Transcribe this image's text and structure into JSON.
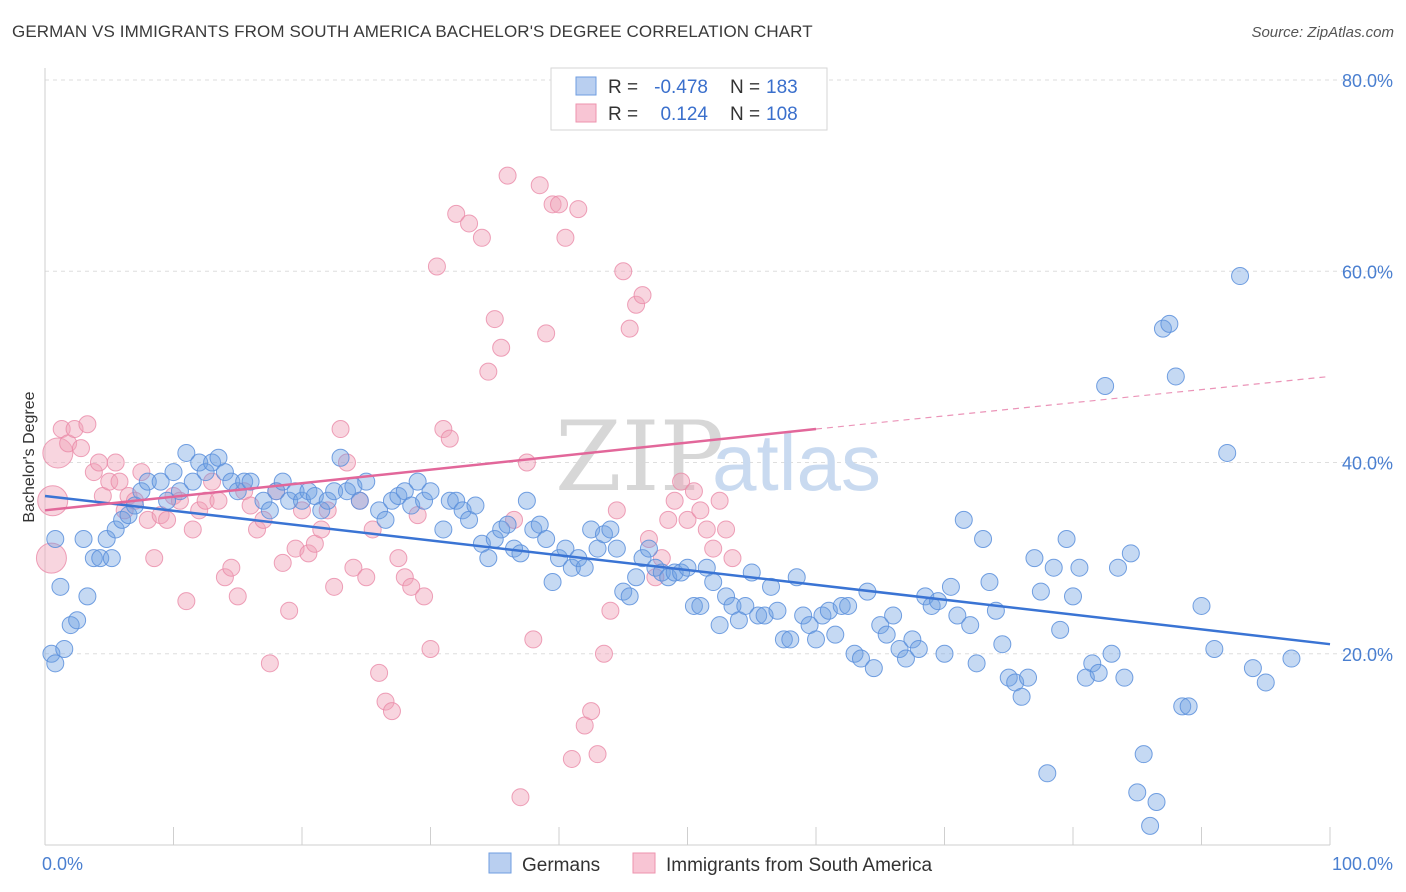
{
  "title": "GERMAN VS IMMIGRANTS FROM SOUTH AMERICA BACHELOR'S DEGREE CORRELATION CHART",
  "source": "Source: ZipAtlas.com",
  "watermark": {
    "zip": "ZIP",
    "atlas": "atlas"
  },
  "colors": {
    "blue": "#6fa0e0",
    "blue_line": "#3a74d4",
    "pink": "#f0a2b9",
    "pink_line": "#e2679a"
  },
  "legend": {
    "r_label": "R =",
    "n_label": "N =",
    "rows": [
      {
        "r": "-0.478",
        "n": "183"
      },
      {
        "r": "0.124",
        "n": "108"
      }
    ]
  },
  "chart_data": {
    "type": "scatter",
    "title": "GERMAN VS IMMIGRANTS FROM SOUTH AMERICA BACHELOR'S DEGREE CORRELATION CHART",
    "xlabel": "",
    "ylabel": "Bachelor's Degree",
    "xlim": [
      0,
      100
    ],
    "ylim": [
      0,
      80
    ],
    "x_tick_labels": [
      "0.0%",
      "100.0%"
    ],
    "y_tick_labels": [
      "20.0%",
      "40.0%",
      "60.0%",
      "80.0%"
    ],
    "y_ticks": [
      20,
      40,
      60,
      80
    ],
    "grid": "horizontal dashed",
    "legend_position": "top-center",
    "series": [
      {
        "name": "Germans",
        "r": -0.478,
        "n": 183,
        "trend": {
          "x": [
            0,
            100
          ],
          "y": [
            36.5,
            21.0
          ]
        },
        "points": [
          [
            0.5,
            20
          ],
          [
            0.8,
            19
          ],
          [
            1.5,
            20.5
          ],
          [
            2,
            23
          ],
          [
            2.5,
            23.5
          ],
          [
            3,
            32
          ],
          [
            3.3,
            26
          ],
          [
            3.8,
            30
          ],
          [
            4.3,
            30
          ],
          [
            4.8,
            32
          ],
          [
            5.2,
            30
          ],
          [
            5.5,
            33
          ],
          [
            6,
            34
          ],
          [
            6.5,
            34.5
          ],
          [
            7,
            35.5
          ],
          [
            7.5,
            37
          ],
          [
            8,
            38
          ],
          [
            9,
            38
          ],
          [
            9.5,
            36
          ],
          [
            10,
            39
          ],
          [
            10.5,
            37
          ],
          [
            11,
            41
          ],
          [
            11.5,
            38
          ],
          [
            12,
            40
          ],
          [
            12.5,
            39
          ],
          [
            13,
            40
          ],
          [
            13.5,
            40.5
          ],
          [
            14,
            39
          ],
          [
            14.5,
            38
          ],
          [
            15,
            37
          ],
          [
            15.5,
            38
          ],
          [
            16,
            38
          ],
          [
            17,
            36
          ],
          [
            17.5,
            35
          ],
          [
            18,
            37
          ],
          [
            18.5,
            38
          ],
          [
            19,
            36
          ],
          [
            19.5,
            37
          ],
          [
            20,
            36
          ],
          [
            20.5,
            37
          ],
          [
            21,
            36.5
          ],
          [
            21.5,
            35
          ],
          [
            22,
            36
          ],
          [
            22.5,
            37
          ],
          [
            23,
            40.5
          ],
          [
            23.5,
            37
          ],
          [
            24,
            37.5
          ],
          [
            24.5,
            36
          ],
          [
            25,
            38
          ],
          [
            26,
            35
          ],
          [
            26.5,
            34
          ],
          [
            27,
            36
          ],
          [
            27.5,
            36.5
          ],
          [
            28,
            37
          ],
          [
            28.5,
            35.5
          ],
          [
            29,
            38
          ],
          [
            29.5,
            36
          ],
          [
            30,
            37
          ],
          [
            31,
            33
          ],
          [
            31.5,
            36
          ],
          [
            32,
            36
          ],
          [
            32.5,
            35
          ],
          [
            33,
            34
          ],
          [
            33.5,
            35.5
          ],
          [
            34,
            31.5
          ],
          [
            34.5,
            30
          ],
          [
            35,
            32
          ],
          [
            35.5,
            33
          ],
          [
            36,
            33.5
          ],
          [
            36.5,
            31
          ],
          [
            37,
            30.5
          ],
          [
            37.5,
            36
          ],
          [
            38,
            33
          ],
          [
            38.5,
            33.5
          ],
          [
            39,
            32
          ],
          [
            39.5,
            27.5
          ],
          [
            40,
            30
          ],
          [
            40.5,
            31
          ],
          [
            41,
            29
          ],
          [
            41.5,
            30
          ],
          [
            42,
            29
          ],
          [
            42.5,
            33
          ],
          [
            43,
            31
          ],
          [
            43.5,
            32.5
          ],
          [
            44,
            33
          ],
          [
            44.5,
            31
          ],
          [
            45,
            26.5
          ],
          [
            45.5,
            26
          ],
          [
            46,
            28
          ],
          [
            46.5,
            30
          ],
          [
            47,
            31
          ],
          [
            47.5,
            29
          ],
          [
            48,
            28.5
          ],
          [
            48.5,
            28
          ],
          [
            49,
            28.5
          ],
          [
            49.5,
            28.5
          ],
          [
            50,
            29
          ],
          [
            50.5,
            25
          ],
          [
            51,
            25
          ],
          [
            51.5,
            29
          ],
          [
            52,
            27.5
          ],
          [
            52.5,
            23
          ],
          [
            53,
            26
          ],
          [
            53.5,
            25
          ],
          [
            54,
            23.5
          ],
          [
            54.5,
            25
          ],
          [
            55,
            28.5
          ],
          [
            55.5,
            24
          ],
          [
            56,
            24
          ],
          [
            56.5,
            27
          ],
          [
            57,
            24.5
          ],
          [
            57.5,
            21.5
          ],
          [
            58,
            21.5
          ],
          [
            58.5,
            28
          ],
          [
            59,
            24
          ],
          [
            59.5,
            23
          ],
          [
            60,
            21.5
          ],
          [
            60.5,
            24
          ],
          [
            61,
            24.5
          ],
          [
            61.5,
            22
          ],
          [
            62,
            25
          ],
          [
            62.5,
            25
          ],
          [
            63,
            20
          ],
          [
            63.5,
            19.5
          ],
          [
            64,
            26.5
          ],
          [
            64.5,
            18.5
          ],
          [
            65,
            23
          ],
          [
            65.5,
            22
          ],
          [
            66,
            24
          ],
          [
            66.5,
            20.5
          ],
          [
            67,
            19.5
          ],
          [
            67.5,
            21.5
          ],
          [
            68,
            20.5
          ],
          [
            68.5,
            26
          ],
          [
            69,
            25
          ],
          [
            69.5,
            25.5
          ],
          [
            70,
            20
          ],
          [
            70.5,
            27
          ],
          [
            71,
            24
          ],
          [
            71.5,
            34
          ],
          [
            72,
            23
          ],
          [
            72.5,
            19
          ],
          [
            73,
            32
          ],
          [
            73.5,
            27.5
          ],
          [
            74,
            24.5
          ],
          [
            74.5,
            21
          ],
          [
            75,
            17.5
          ],
          [
            75.5,
            17
          ],
          [
            76,
            15.5
          ],
          [
            76.5,
            17.5
          ],
          [
            77,
            30
          ],
          [
            77.5,
            26.5
          ],
          [
            78,
            7.5
          ],
          [
            78.5,
            29
          ],
          [
            79,
            22.5
          ],
          [
            79.5,
            32
          ],
          [
            80,
            26
          ],
          [
            80.5,
            29
          ],
          [
            81,
            17.5
          ],
          [
            81.5,
            19
          ],
          [
            82,
            18
          ],
          [
            82.5,
            48
          ],
          [
            83,
            20
          ],
          [
            83.5,
            29
          ],
          [
            84,
            17.5
          ],
          [
            84.5,
            30.5
          ],
          [
            85,
            5.5
          ],
          [
            85.5,
            9.5
          ],
          [
            86,
            2
          ],
          [
            86.5,
            4.5
          ],
          [
            87,
            54
          ],
          [
            87.5,
            54.5
          ],
          [
            88,
            49
          ],
          [
            88.5,
            14.5
          ],
          [
            89,
            14.5
          ],
          [
            90,
            25
          ],
          [
            91,
            20.5
          ],
          [
            92,
            41
          ],
          [
            93,
            59.5
          ],
          [
            94,
            18.5
          ],
          [
            95,
            17
          ],
          [
            97,
            19.5
          ],
          [
            0.8,
            32
          ],
          [
            1.2,
            27
          ]
        ]
      },
      {
        "name": "Immigrants from South America",
        "r": 0.124,
        "n": 108,
        "trend": {
          "x": [
            0,
            60
          ],
          "y": [
            35.0,
            43.5
          ]
        },
        "trend_ext": {
          "x": [
            60,
            100
          ],
          "y": [
            43.5,
            49.0
          ]
        },
        "points": [
          [
            0.5,
            30
          ],
          [
            0.6,
            36
          ],
          [
            1,
            41
          ],
          [
            1.3,
            43.5
          ],
          [
            1.8,
            42
          ],
          [
            2.3,
            43.5
          ],
          [
            2.8,
            41.5
          ],
          [
            3.3,
            44
          ],
          [
            3.8,
            39
          ],
          [
            4.2,
            40
          ],
          [
            4.5,
            36.5
          ],
          [
            5,
            38
          ],
          [
            5.5,
            40
          ],
          [
            5.8,
            38
          ],
          [
            6.2,
            35
          ],
          [
            6.5,
            36.5
          ],
          [
            7,
            36
          ],
          [
            7.5,
            39
          ],
          [
            8,
            34
          ],
          [
            8.5,
            30
          ],
          [
            9,
            34.5
          ],
          [
            9.5,
            34
          ],
          [
            10,
            36.5
          ],
          [
            10.5,
            36
          ],
          [
            11,
            25.5
          ],
          [
            11.5,
            33
          ],
          [
            12,
            35
          ],
          [
            12.5,
            36
          ],
          [
            13,
            38
          ],
          [
            13.5,
            36
          ],
          [
            14,
            28
          ],
          [
            14.5,
            29
          ],
          [
            15,
            26
          ],
          [
            15.5,
            37
          ],
          [
            16,
            35.5
          ],
          [
            16.5,
            33
          ],
          [
            17,
            34
          ],
          [
            17.5,
            19
          ],
          [
            18,
            37
          ],
          [
            18.5,
            29.5
          ],
          [
            19,
            24.5
          ],
          [
            19.5,
            31
          ],
          [
            20,
            35
          ],
          [
            20.5,
            30.5
          ],
          [
            21,
            31.5
          ],
          [
            21.5,
            33
          ],
          [
            22,
            35
          ],
          [
            22.5,
            27
          ],
          [
            23,
            43.5
          ],
          [
            23.5,
            40
          ],
          [
            24,
            29
          ],
          [
            24.5,
            36
          ],
          [
            25,
            28
          ],
          [
            25.5,
            33
          ],
          [
            26,
            18
          ],
          [
            26.5,
            15
          ],
          [
            27,
            14
          ],
          [
            27.5,
            30
          ],
          [
            28,
            28
          ],
          [
            28.5,
            27
          ],
          [
            29,
            34.5
          ],
          [
            29.5,
            26
          ],
          [
            30,
            20.5
          ],
          [
            30.5,
            60.5
          ],
          [
            31,
            43.5
          ],
          [
            31.5,
            42.5
          ],
          [
            32,
            66
          ],
          [
            33,
            65
          ],
          [
            34,
            63.5
          ],
          [
            34.5,
            49.5
          ],
          [
            35,
            55
          ],
          [
            35.5,
            52
          ],
          [
            36,
            70
          ],
          [
            36.5,
            34
          ],
          [
            37,
            5
          ],
          [
            37.5,
            40
          ],
          [
            38,
            21.5
          ],
          [
            38.5,
            69
          ],
          [
            39,
            53.5
          ],
          [
            39.5,
            67
          ],
          [
            40,
            67
          ],
          [
            40.5,
            63.5
          ],
          [
            41,
            9
          ],
          [
            41.5,
            66.5
          ],
          [
            42,
            12.5
          ],
          [
            42.5,
            14
          ],
          [
            43,
            9.5
          ],
          [
            43.5,
            20
          ],
          [
            44,
            24.5
          ],
          [
            44.5,
            35
          ],
          [
            45,
            60
          ],
          [
            45.5,
            54
          ],
          [
            46,
            56.5
          ],
          [
            46.5,
            57.5
          ],
          [
            47,
            32
          ],
          [
            47.5,
            28
          ],
          [
            48,
            30
          ],
          [
            48.5,
            34
          ],
          [
            49,
            36
          ],
          [
            49.5,
            38
          ],
          [
            50,
            34
          ],
          [
            50.5,
            37
          ],
          [
            51,
            35
          ],
          [
            51.5,
            33
          ],
          [
            52,
            31
          ],
          [
            52.5,
            36
          ],
          [
            53,
            33
          ],
          [
            53.5,
            30
          ]
        ]
      }
    ]
  },
  "bottom_legend": [
    {
      "label": "Germans"
    },
    {
      "label": "Immigrants from South America"
    }
  ]
}
